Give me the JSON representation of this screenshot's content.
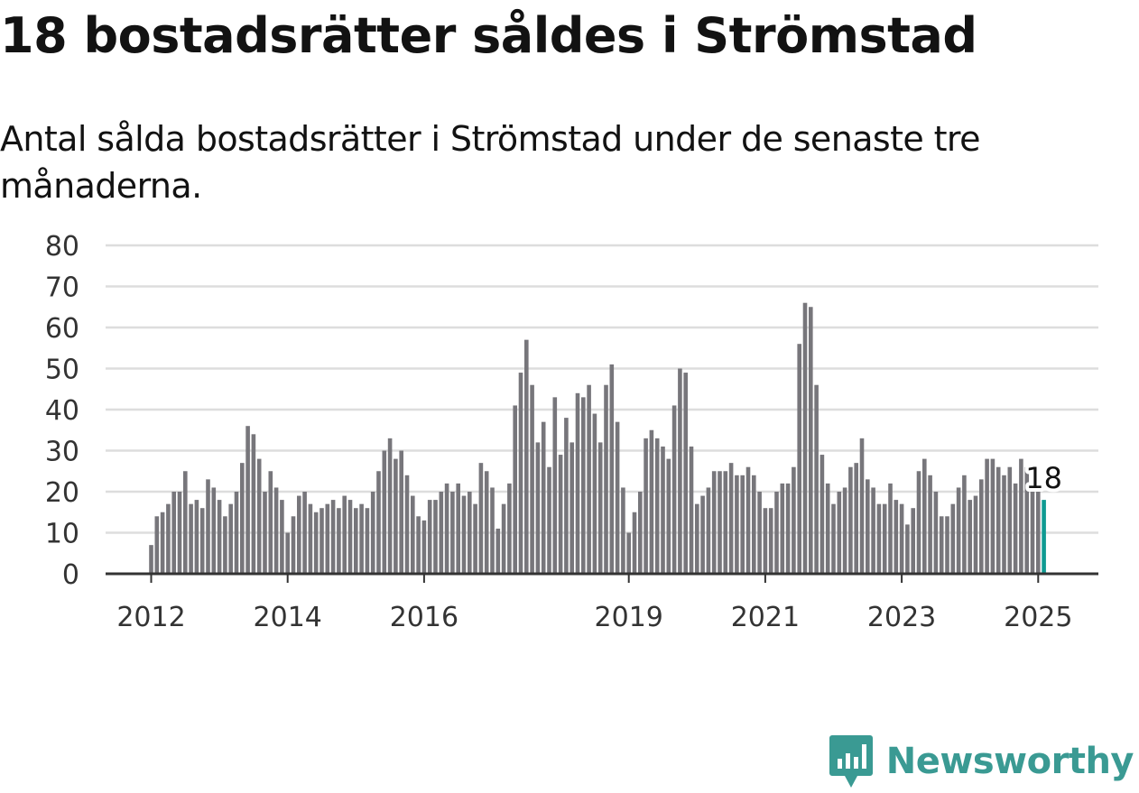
{
  "title": "18 bostadsrätter såldes i Strömstad",
  "subtitle": "Antal sålda bostadsrätter i Strömstad under de senaste tre månaderna.",
  "brand": {
    "name": "Newsworthy",
    "icon": "newsworthy-logo-icon",
    "color": "#3a9a93"
  },
  "chart_data": {
    "type": "bar",
    "x_start": "2012-01",
    "x_end": "2025-02",
    "y_ticks": [
      0,
      10,
      20,
      30,
      40,
      50,
      60,
      70,
      80
    ],
    "ylim": [
      0,
      80
    ],
    "x_tick_labels": [
      {
        "label": "2012",
        "date": "2012-01"
      },
      {
        "label": "2014",
        "date": "2014-01"
      },
      {
        "label": "2016",
        "date": "2016-01"
      },
      {
        "label": "2019",
        "date": "2019-01"
      },
      {
        "label": "2021",
        "date": "2021-01"
      },
      {
        "label": "2023",
        "date": "2023-01"
      },
      {
        "label": "2025",
        "date": "2025-01"
      }
    ],
    "values": [
      7,
      14,
      15,
      17,
      20,
      20,
      25,
      17,
      18,
      16,
      23,
      21,
      18,
      14,
      17,
      20,
      27,
      36,
      34,
      28,
      20,
      25,
      21,
      18,
      10,
      14,
      19,
      20,
      17,
      15,
      16,
      17,
      18,
      16,
      19,
      18,
      16,
      17,
      16,
      20,
      25,
      30,
      33,
      28,
      30,
      24,
      19,
      14,
      13,
      18,
      18,
      20,
      22,
      20,
      22,
      19,
      20,
      17,
      27,
      25,
      21,
      11,
      17,
      22,
      41,
      49,
      57,
      46,
      32,
      37,
      26,
      43,
      29,
      38,
      32,
      44,
      43,
      46,
      39,
      32,
      46,
      51,
      37,
      21,
      10,
      15,
      20,
      33,
      35,
      33,
      31,
      28,
      41,
      50,
      49,
      31,
      17,
      19,
      21,
      25,
      25,
      25,
      27,
      24,
      24,
      26,
      24,
      20,
      16,
      16,
      20,
      22,
      22,
      26,
      56,
      66,
      65,
      46,
      29,
      22,
      17,
      20,
      21,
      26,
      27,
      33,
      23,
      21,
      17,
      17,
      22,
      18,
      17,
      12,
      16,
      25,
      28,
      24,
      20,
      14,
      14,
      17,
      21,
      24,
      18,
      19,
      23,
      28,
      28,
      26,
      24,
      26,
      22,
      28,
      26,
      21,
      21,
      18
    ],
    "colors": {
      "bar": "#77767b",
      "highlight": "#0f9a92",
      "grid": "#dddddd",
      "axis": "#333333"
    },
    "highlight_last": true,
    "data_label": "18",
    "grid": true
  }
}
